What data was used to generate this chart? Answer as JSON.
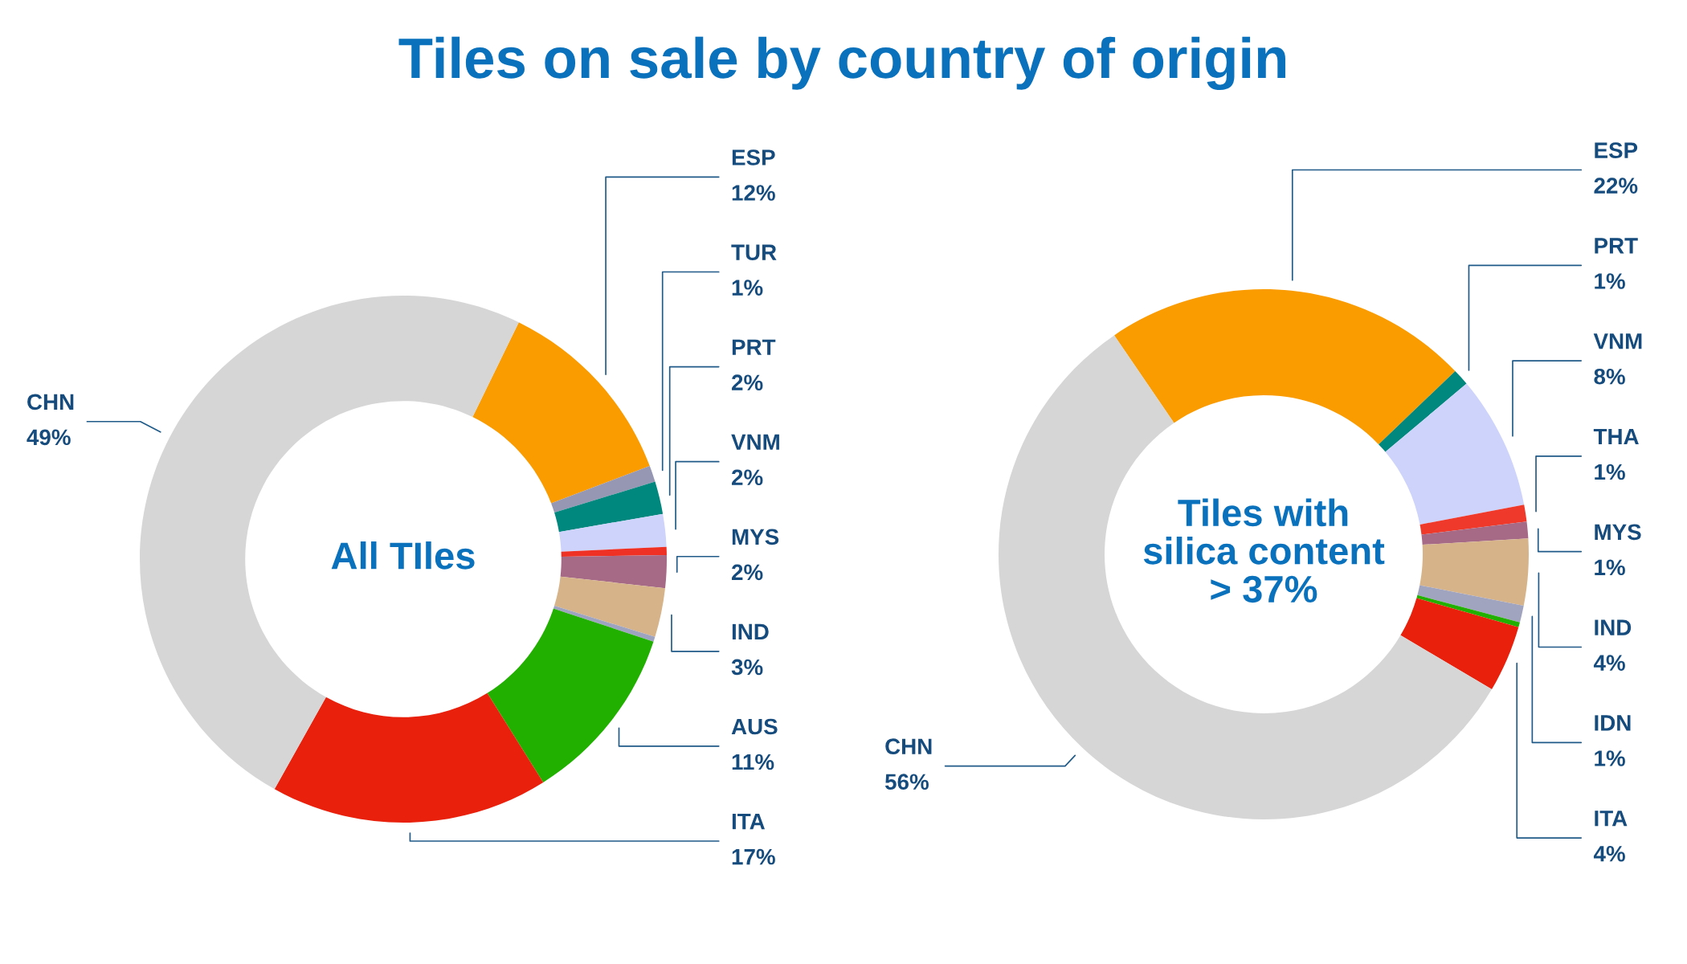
{
  "chart_data": [
    {
      "type": "donut",
      "title": "Tiles on sale by country of origin",
      "subtitle": "All TIles",
      "categories": [
        "ESP",
        "TUR",
        "PRT",
        "VNM",
        null,
        "MYS",
        "IND",
        null,
        "AUS",
        "ITA",
        "CHN"
      ],
      "values": [
        12,
        1,
        2,
        2,
        0.5,
        2,
        3,
        0.3,
        11,
        17,
        49
      ],
      "colors": [
        "#fa9c00",
        "#9597b3",
        "#00877e",
        "#cdd3fb",
        "#ee3124",
        "#a66a87",
        "#d6b389",
        "#9ea3c0",
        "#22b000",
        "#e8200c",
        "#d6d6d6"
      ],
      "value_labels": [
        "12%",
        "1%",
        "2%",
        "2%",
        null,
        "2%",
        "3%",
        null,
        "11%",
        "17%",
        "49%"
      ]
    },
    {
      "type": "donut",
      "subtitle": "Tiles with\nsilica content\n> 37%",
      "categories": [
        "ESP",
        "PRT",
        "VNM",
        "THA",
        "MYS",
        "IND",
        "IDN",
        null,
        "ITA",
        "CHN"
      ],
      "values": [
        22,
        1,
        8,
        1,
        1,
        4,
        1,
        0.3,
        4,
        56
      ],
      "colors": [
        "#fa9c00",
        "#00877e",
        "#cdd3fb",
        "#ef3a2b",
        "#a66a87",
        "#d6b389",
        "#a0a4bf",
        "#22b000",
        "#e8200c",
        "#d6d6d6"
      ],
      "value_labels": [
        "22%",
        "1%",
        "8%",
        "1%",
        "1%",
        "4%",
        "1%",
        null,
        "4%",
        "56%"
      ]
    }
  ]
}
